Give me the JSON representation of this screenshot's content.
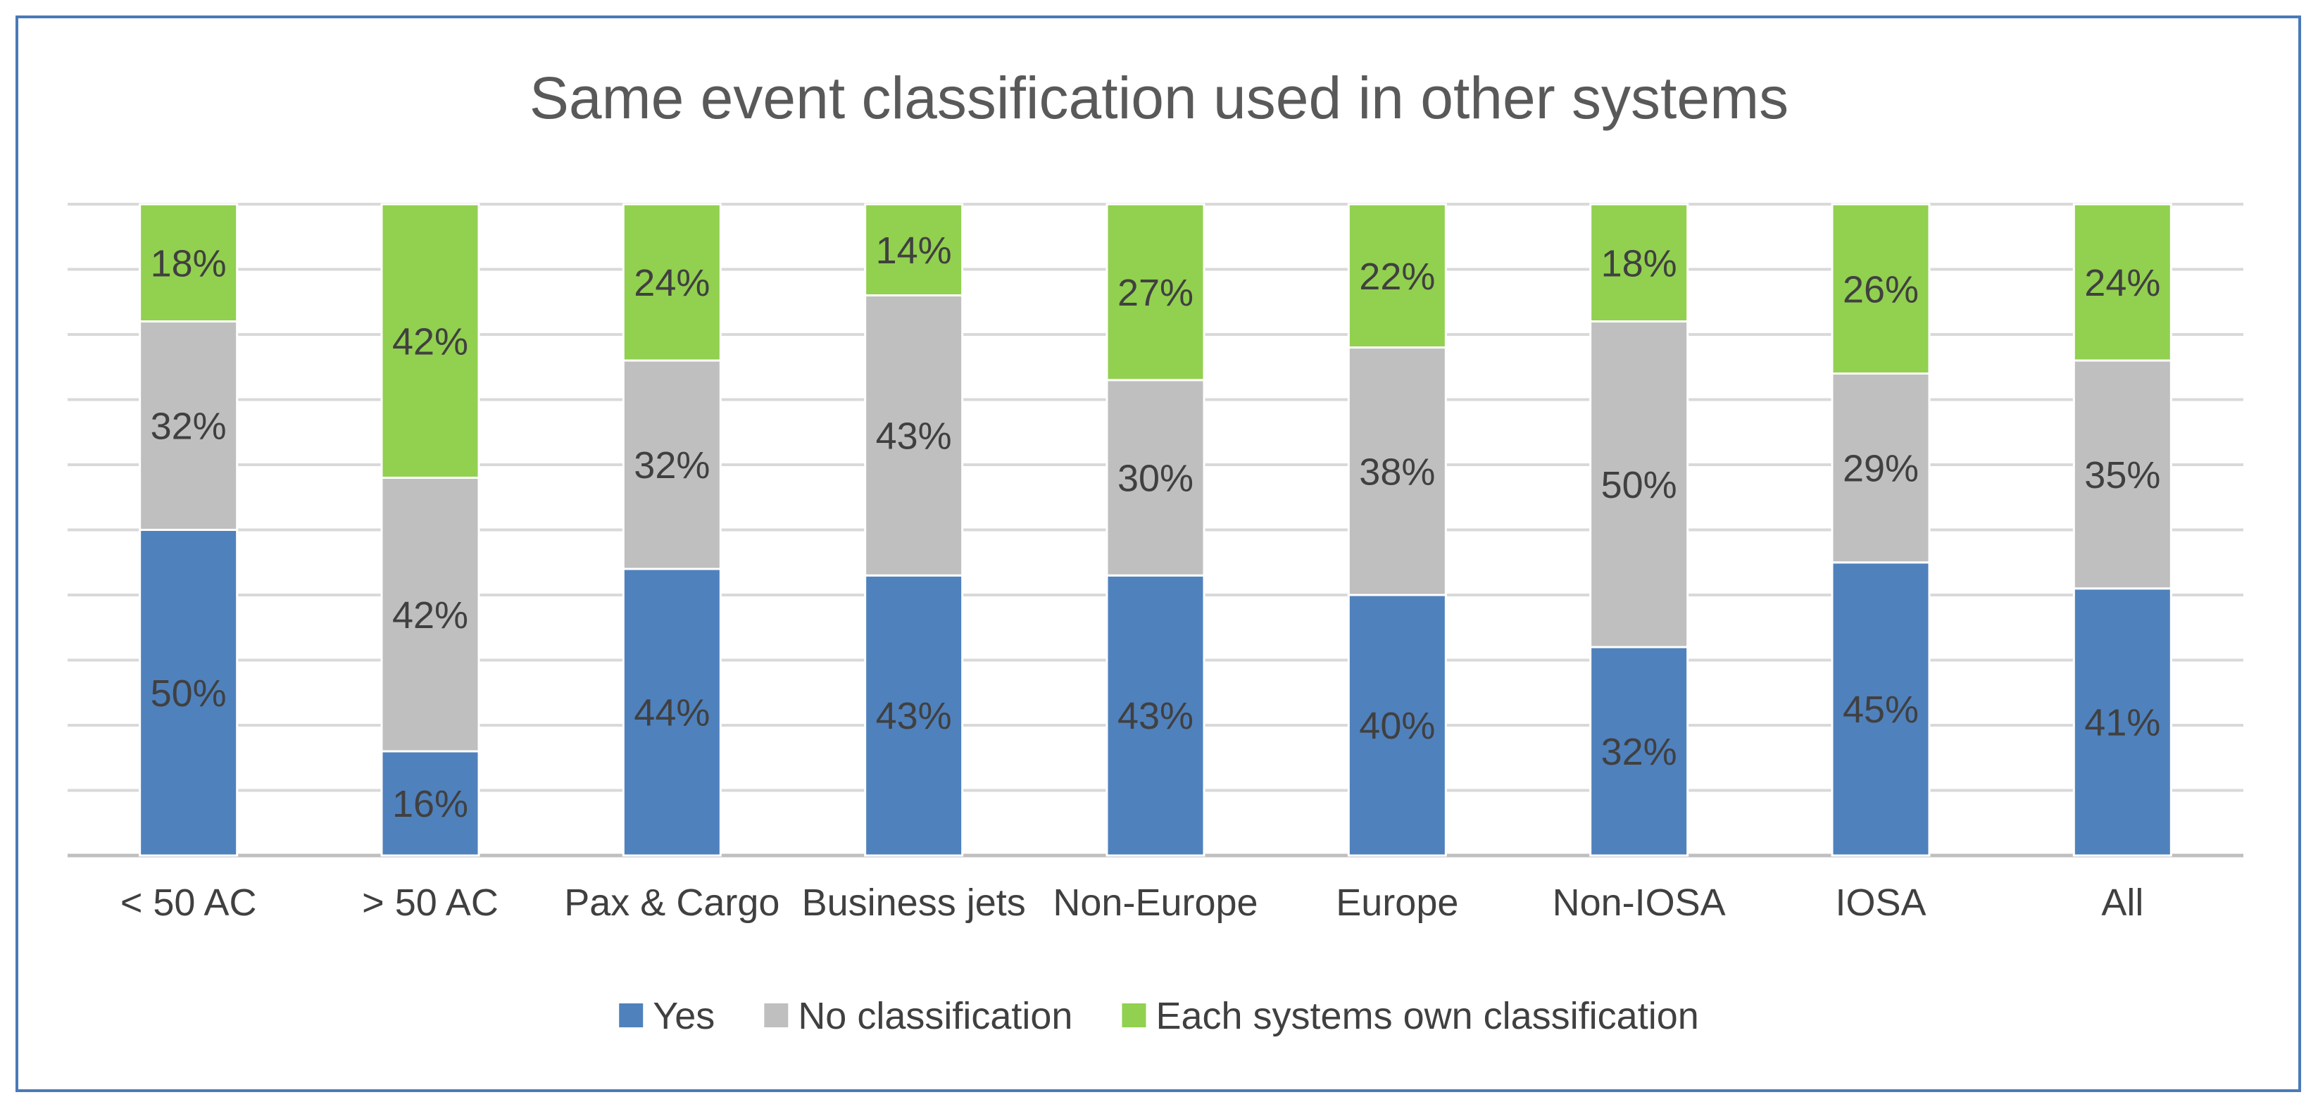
{
  "chart_data": {
    "type": "stacked-bar-100",
    "title": "Same event classification used in other systems",
    "categories": [
      "< 50 AC",
      "> 50 AC",
      "Pax & Cargo",
      "Business jets",
      "Non-Europe",
      "Europe",
      "Non-IOSA",
      "IOSA",
      "All"
    ],
    "series": [
      {
        "name": "Yes",
        "color": "#4f81bd",
        "values": [
          50,
          16,
          44,
          43,
          43,
          40,
          32,
          45,
          41
        ]
      },
      {
        "name": "No classification",
        "color": "#bfbfbf",
        "values": [
          32,
          42,
          32,
          43,
          30,
          38,
          50,
          29,
          35
        ]
      },
      {
        "name": "Each systems own classification",
        "color": "#92d050",
        "values": [
          18,
          42,
          24,
          14,
          27,
          22,
          18,
          26,
          24
        ]
      }
    ],
    "ylim": [
      0,
      100
    ],
    "grid": true,
    "legend": "bottom",
    "value_suffix": "%"
  }
}
